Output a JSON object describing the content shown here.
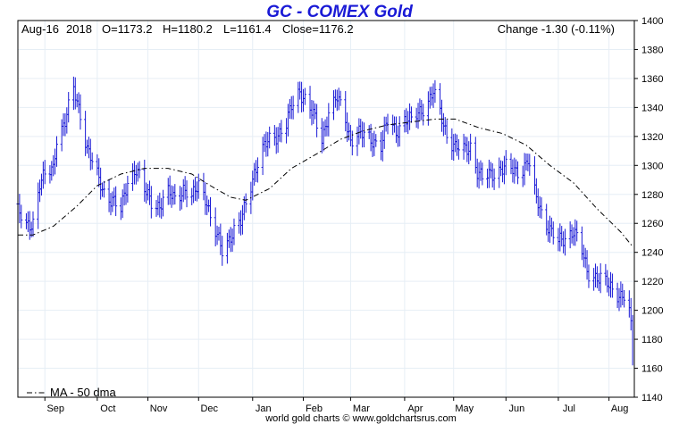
{
  "colors": {
    "title": "#1a1ad6",
    "bars": "#1a1ad6",
    "ma": "#000000",
    "grid": "#e6eef5"
  },
  "chart_data": {
    "type": "bar",
    "subtype": "ohlc",
    "title": "GC - COMEX Gold",
    "header": {
      "date": "Aug-16",
      "year": "2018",
      "open": "O=1173.2",
      "high": "H=1180.2",
      "low": "L=1161.4",
      "close": "Close=1176.2",
      "change": "Change -1.30 (-0.11%)"
    },
    "footer": "world gold charts © www.goldchartsrus.com",
    "legend": {
      "label": "MA - 50 dma",
      "placement": "bottom-left"
    },
    "ylim": [
      1140,
      1400
    ],
    "yticks": [
      1140,
      1160,
      1180,
      1200,
      1220,
      1240,
      1260,
      1280,
      1300,
      1320,
      1340,
      1360,
      1380,
      1400
    ],
    "xlim": [
      "2017-08-16",
      "2018-08-16"
    ],
    "month_ticks": [
      {
        "label": "Sep",
        "date": "2017-09-01"
      },
      {
        "label": "Oct",
        "date": "2017-10-02"
      },
      {
        "label": "Nov",
        "date": "2017-11-01"
      },
      {
        "label": "Dec",
        "date": "2017-12-01"
      },
      {
        "label": "Jan",
        "date": "2018-01-02"
      },
      {
        "label": "Feb",
        "date": "2018-02-01"
      },
      {
        "label": "Mar",
        "date": "2018-03-01"
      },
      {
        "label": "Apr",
        "date": "2018-04-02"
      },
      {
        "label": "May",
        "date": "2018-05-01"
      },
      {
        "label": "Jun",
        "date": "2018-06-01"
      },
      {
        "label": "Jul",
        "date": "2018-07-02"
      },
      {
        "label": "Aug",
        "date": "2018-08-01"
      }
    ],
    "grid": true,
    "series": [
      {
        "kind": "price",
        "points": [
          [
            "2017-08-16",
            1268
          ],
          [
            "2017-08-21",
            1257
          ],
          [
            "2017-08-25",
            1262
          ],
          [
            "2017-08-29",
            1288
          ],
          [
            "2017-09-01",
            1292
          ],
          [
            "2017-09-06",
            1298
          ],
          [
            "2017-09-08",
            1320
          ],
          [
            "2017-09-13",
            1330
          ],
          [
            "2017-09-18",
            1352
          ],
          [
            "2017-09-22",
            1336
          ],
          [
            "2017-09-26",
            1312
          ],
          [
            "2017-10-02",
            1292
          ],
          [
            "2017-10-06",
            1282
          ],
          [
            "2017-10-11",
            1276
          ],
          [
            "2017-10-16",
            1268
          ],
          [
            "2017-10-20",
            1290
          ],
          [
            "2017-10-25",
            1298
          ],
          [
            "2017-10-30",
            1282
          ],
          [
            "2017-11-03",
            1276
          ],
          [
            "2017-11-08",
            1272
          ],
          [
            "2017-11-13",
            1280
          ],
          [
            "2017-11-17",
            1278
          ],
          [
            "2017-11-22",
            1284
          ],
          [
            "2017-11-27",
            1276
          ],
          [
            "2017-12-01",
            1288
          ],
          [
            "2017-12-06",
            1276
          ],
          [
            "2017-12-08",
            1262
          ],
          [
            "2017-12-12",
            1250
          ],
          [
            "2017-12-15",
            1242
          ],
          [
            "2017-12-20",
            1252
          ],
          [
            "2017-12-26",
            1260
          ],
          [
            "2017-12-29",
            1274
          ],
          [
            "2018-01-03",
            1296
          ],
          [
            "2018-01-08",
            1310
          ],
          [
            "2018-01-12",
            1318
          ],
          [
            "2018-01-17",
            1322
          ],
          [
            "2018-01-22",
            1328
          ],
          [
            "2018-01-25",
            1340
          ],
          [
            "2018-01-30",
            1352
          ],
          [
            "2018-02-02",
            1346
          ],
          [
            "2018-02-07",
            1334
          ],
          [
            "2018-02-12",
            1318
          ],
          [
            "2018-02-16",
            1338
          ],
          [
            "2018-02-21",
            1346
          ],
          [
            "2018-02-26",
            1332
          ],
          [
            "2018-03-01",
            1318
          ],
          [
            "2018-03-06",
            1322
          ],
          [
            "2018-03-09",
            1320
          ],
          [
            "2018-03-14",
            1318
          ],
          [
            "2018-03-19",
            1314
          ],
          [
            "2018-03-23",
            1330
          ],
          [
            "2018-03-28",
            1324
          ],
          [
            "2018-04-02",
            1332
          ],
          [
            "2018-04-06",
            1330
          ],
          [
            "2018-04-11",
            1338
          ],
          [
            "2018-04-16",
            1344
          ],
          [
            "2018-04-19",
            1350
          ],
          [
            "2018-04-23",
            1336
          ],
          [
            "2018-04-27",
            1322
          ],
          [
            "2018-05-02",
            1312
          ],
          [
            "2018-05-07",
            1310
          ],
          [
            "2018-05-11",
            1314
          ],
          [
            "2018-05-15",
            1296
          ],
          [
            "2018-05-18",
            1290
          ],
          [
            "2018-05-23",
            1294
          ],
          [
            "2018-05-29",
            1298
          ],
          [
            "2018-06-01",
            1298
          ],
          [
            "2018-06-06",
            1296
          ],
          [
            "2018-06-11",
            1298
          ],
          [
            "2018-06-14",
            1304
          ],
          [
            "2018-06-18",
            1280
          ],
          [
            "2018-06-22",
            1268
          ],
          [
            "2018-06-27",
            1256
          ],
          [
            "2018-07-02",
            1246
          ],
          [
            "2018-07-06",
            1250
          ],
          [
            "2018-07-11",
            1256
          ],
          [
            "2018-07-16",
            1240
          ],
          [
            "2018-07-19",
            1226
          ],
          [
            "2018-07-24",
            1224
          ],
          [
            "2018-07-27",
            1222
          ],
          [
            "2018-08-01",
            1216
          ],
          [
            "2018-08-06",
            1212
          ],
          [
            "2018-08-10",
            1210
          ],
          [
            "2018-08-13",
            1198
          ],
          [
            "2018-08-15",
            1176
          ]
        ]
      },
      {
        "kind": "moving_average",
        "name": "MA - 50 dma",
        "points": [
          [
            "2017-08-16",
            1252
          ],
          [
            "2017-08-25",
            1252
          ],
          [
            "2017-09-06",
            1258
          ],
          [
            "2017-09-20",
            1272
          ],
          [
            "2017-10-02",
            1286
          ],
          [
            "2017-10-16",
            1294
          ],
          [
            "2017-10-30",
            1298
          ],
          [
            "2017-11-13",
            1298
          ],
          [
            "2017-11-27",
            1294
          ],
          [
            "2017-12-08",
            1286
          ],
          [
            "2017-12-20",
            1278
          ],
          [
            "2017-12-29",
            1276
          ],
          [
            "2018-01-12",
            1284
          ],
          [
            "2018-01-25",
            1298
          ],
          [
            "2018-02-09",
            1308
          ],
          [
            "2018-02-23",
            1318
          ],
          [
            "2018-03-09",
            1324
          ],
          [
            "2018-03-23",
            1328
          ],
          [
            "2018-04-06",
            1330
          ],
          [
            "2018-04-20",
            1332
          ],
          [
            "2018-05-02",
            1332
          ],
          [
            "2018-05-16",
            1326
          ],
          [
            "2018-05-30",
            1322
          ],
          [
            "2018-06-13",
            1314
          ],
          [
            "2018-06-27",
            1300
          ],
          [
            "2018-07-11",
            1288
          ],
          [
            "2018-07-25",
            1270
          ],
          [
            "2018-08-08",
            1254
          ],
          [
            "2018-08-15",
            1244
          ]
        ]
      }
    ]
  }
}
